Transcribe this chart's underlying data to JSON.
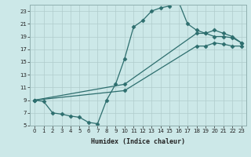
{
  "title": "",
  "xlabel": "Humidex (Indice chaleur)",
  "ylabel": "",
  "bg_color": "#cce8e8",
  "line_color": "#2d6e6e",
  "xlim": [
    -0.5,
    23.5
  ],
  "ylim": [
    5,
    24
  ],
  "xticks": [
    0,
    1,
    2,
    3,
    4,
    5,
    6,
    7,
    8,
    9,
    10,
    11,
    12,
    13,
    14,
    15,
    16,
    17,
    18,
    19,
    20,
    21,
    22,
    23
  ],
  "yticks": [
    5,
    7,
    9,
    11,
    13,
    15,
    17,
    19,
    21,
    23
  ],
  "line1_x": [
    0,
    1,
    2,
    3,
    4,
    5,
    6,
    7,
    8,
    9,
    10,
    11,
    12,
    13,
    14,
    15,
    16,
    17,
    18,
    19,
    20,
    21,
    22,
    23
  ],
  "line1_y": [
    9,
    8.8,
    7.0,
    6.8,
    6.5,
    6.3,
    5.5,
    5.3,
    9.0,
    11.5,
    15.5,
    20.5,
    21.5,
    23.0,
    23.5,
    23.8,
    24.5,
    21.0,
    20.0,
    19.5,
    19.0,
    19.0,
    18.8,
    18.0
  ],
  "line2_x": [
    0,
    10,
    18,
    19,
    20,
    21,
    22,
    23
  ],
  "line2_y": [
    9,
    11.5,
    19.5,
    19.5,
    20.0,
    19.5,
    19.0,
    18.0
  ],
  "line3_x": [
    0,
    10,
    18,
    19,
    20,
    21,
    22,
    23
  ],
  "line3_y": [
    9,
    10.5,
    17.5,
    17.5,
    18.0,
    17.8,
    17.5,
    17.5
  ],
  "markersize": 2.5,
  "linewidth": 0.9,
  "xlabel_fontsize": 6,
  "tick_fontsize": 5
}
